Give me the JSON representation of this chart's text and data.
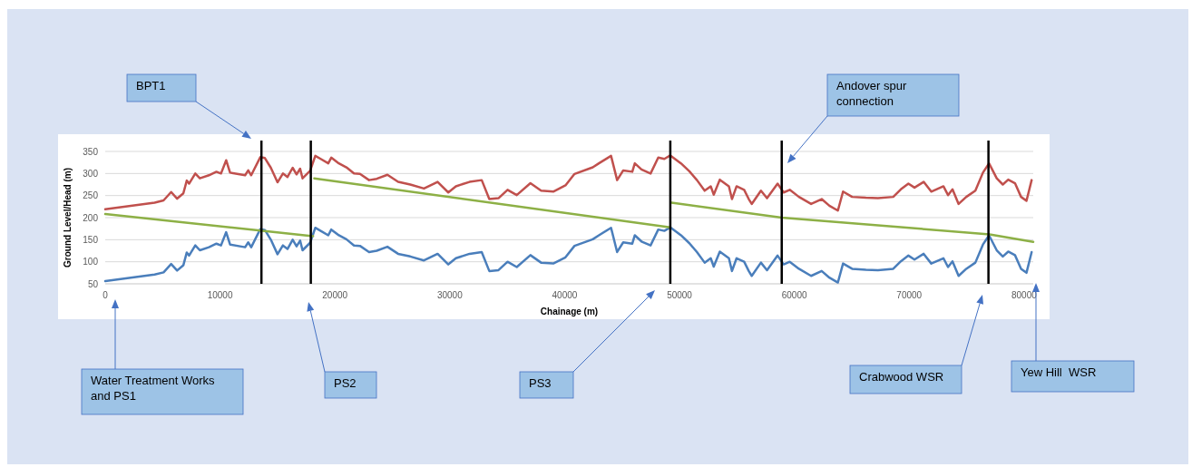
{
  "chart_data": {
    "type": "line",
    "xlabel": "Chainage (m)",
    "ylabel": "Ground Level/Head (m)",
    "xlim": [
      0,
      80800
    ],
    "xticks": [
      0,
      10000,
      20000,
      30000,
      40000,
      50000,
      60000,
      70000,
      80000
    ],
    "ylim": [
      50,
      350
    ],
    "yticks": [
      50,
      100,
      150,
      200,
      250,
      300,
      350
    ],
    "grid": "y",
    "x": [
      0,
      4300,
      5080,
      5740,
      6260,
      6800,
      7100,
      7300,
      7840,
      8240,
      9030,
      9680,
      10080,
      10530,
      10870,
      12180,
      12450,
      12710,
      13500,
      13900,
      14420,
      15000,
      15470,
      15870,
      16320,
      16660,
      16970,
      17180,
      17840,
      18290,
      18760,
      19420,
      19680,
      20340,
      21000,
      21660,
      22180,
      22970,
      23640,
      24570,
      25500,
      26560,
      27750,
      28940,
      29870,
      30530,
      31720,
      32780,
      33440,
      34240,
      35030,
      35830,
      37020,
      37950,
      39010,
      40070,
      40860,
      42450,
      42980,
      44040,
      44570,
      45100,
      45890,
      46110,
      46690,
      47480,
      48150,
      48680,
      49200,
      50130,
      50860,
      51520,
      52190,
      52720,
      52980,
      53510,
      54300,
      54570,
      54970,
      55630,
      56030,
      56290,
      57090,
      57620,
      58540,
      59070,
      59600,
      60400,
      61460,
      62380,
      63050,
      63790,
      64240,
      65030,
      66230,
      67280,
      68610,
      69270,
      69930,
      70460,
      71260,
      71920,
      72980,
      73380,
      73770,
      74300,
      74970,
      75760,
      76420,
      76950,
      77620,
      78150,
      78620,
      79210,
      79740,
      80210,
      80660
    ],
    "series": [
      {
        "color": "#c0504d",
        "values": [
          219,
          234,
          239,
          258,
          243,
          255,
          284,
          277,
          300,
          289,
          296,
          304,
          300,
          330,
          302,
          296,
          307,
          296,
          337,
          335,
          313,
          280,
          300,
          292,
          313,
          298,
          311,
          289,
          306,
          340,
          333,
          323,
          336,
          323,
          314,
          300,
          299,
          285,
          288,
          297,
          281,
          275,
          266,
          281,
          257,
          271,
          281,
          285,
          242,
          244,
          263,
          251,
          278,
          261,
          259,
          273,
          299,
          314,
          323,
          340,
          285,
          307,
          304,
          323,
          309,
          300,
          336,
          333,
          341,
          323,
          305,
          285,
          261,
          271,
          252,
          286,
          271,
          242,
          271,
          263,
          242,
          231,
          261,
          244,
          277,
          257,
          263,
          247,
          231,
          242,
          227,
          216,
          259,
          247,
          245,
          244,
          247,
          264,
          277,
          268,
          281,
          259,
          271,
          251,
          264,
          231,
          247,
          261,
          302,
          323,
          289,
          275,
          286,
          278,
          247,
          238,
          285
        ]
      },
      {
        "color": "#4a7ebb",
        "values": [
          56,
          71,
          76,
          95,
          80,
          92,
          121,
          114,
          137,
          126,
          133,
          141,
          137,
          167,
          139,
          133,
          144,
          133,
          174,
          172,
          150,
          117,
          137,
          129,
          150,
          135,
          148,
          126,
          143,
          177,
          170,
          160,
          173,
          160,
          151,
          137,
          136,
          122,
          125,
          134,
          118,
          112,
          103,
          118,
          94,
          108,
          118,
          122,
          79,
          81,
          100,
          88,
          115,
          98,
          96,
          110,
          136,
          151,
          160,
          177,
          122,
          144,
          141,
          160,
          146,
          137,
          173,
          170,
          178,
          160,
          142,
          122,
          98,
          108,
          89,
          123,
          108,
          79,
          108,
          100,
          79,
          68,
          98,
          81,
          114,
          94,
          100,
          84,
          68,
          79,
          64,
          53,
          96,
          84,
          82,
          81,
          84,
          101,
          114,
          105,
          118,
          96,
          108,
          88,
          101,
          68,
          84,
          98,
          139,
          160,
          126,
          112,
          123,
          115,
          84,
          75,
          122
        ]
      },
      {
        "color": "#8db046",
        "x": [
          0,
          18100,
          18150,
          18200,
          49200,
          49250,
          49300,
          58900,
          77000,
          80800
        ],
        "values": [
          208,
          158,
          null,
          289,
          178,
          null,
          234,
          200,
          162,
          145
        ]
      }
    ],
    "ref_lines": [
      {
        "axis": "x",
        "value": 13600,
        "color": "#000000"
      },
      {
        "axis": "x",
        "value": 17900,
        "color": "#000000"
      },
      {
        "axis": "x",
        "value": 49200,
        "color": "#000000"
      },
      {
        "axis": "x",
        "value": 58900,
        "color": "#000000"
      },
      {
        "axis": "x",
        "value": 76900,
        "color": "#000000"
      }
    ],
    "annotations": [
      "BPT1",
      "PS2",
      "PS3",
      "Andover spur connection",
      "Crabwood WSR",
      "Water Treatment Works and PS1",
      "Yew Hill  WSR"
    ]
  }
}
